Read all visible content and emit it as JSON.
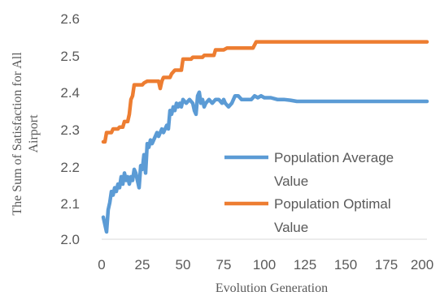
{
  "chart_data": {
    "type": "line",
    "xlabel": "Evolution Generation",
    "ylabel": [
      "The Sum of  Satisfaction for All",
      "Airport"
    ],
    "xlim": [
      0,
      200
    ],
    "ylim": [
      2.0,
      2.6
    ],
    "x_ticks": [
      "0",
      "25",
      "50",
      "75",
      "100",
      "125",
      "150",
      "175",
      "200"
    ],
    "y_ticks": [
      "2.0",
      "2.1",
      "2.2",
      "2.3",
      "2.4",
      "2.5",
      "2.6"
    ],
    "grid": false,
    "legend_position": "right",
    "series": [
      {
        "name": [
          "Population Average",
          "Value"
        ],
        "color": "#5b9bd5",
        "points": [
          [
            1,
            2.06
          ],
          [
            2,
            2.04
          ],
          [
            3,
            2.02
          ],
          [
            4,
            2.08
          ],
          [
            5,
            2.1
          ],
          [
            6,
            2.13
          ],
          [
            7,
            2.12
          ],
          [
            8,
            2.14
          ],
          [
            9,
            2.13
          ],
          [
            10,
            2.15
          ],
          [
            11,
            2.14
          ],
          [
            12,
            2.17
          ],
          [
            13,
            2.15
          ],
          [
            14,
            2.18
          ],
          [
            15,
            2.16
          ],
          [
            16,
            2.17
          ],
          [
            17,
            2.15
          ],
          [
            18,
            2.17
          ],
          [
            19,
            2.16
          ],
          [
            20,
            2.19
          ],
          [
            21,
            2.18
          ],
          [
            22,
            2.16
          ],
          [
            23,
            2.14
          ],
          [
            24,
            2.2
          ],
          [
            25,
            2.19
          ],
          [
            26,
            2.23
          ],
          [
            27,
            2.18
          ],
          [
            28,
            2.26
          ],
          [
            29,
            2.25
          ],
          [
            30,
            2.27
          ],
          [
            31,
            2.26
          ],
          [
            32,
            2.27
          ],
          [
            33,
            2.28
          ],
          [
            34,
            2.29
          ],
          [
            35,
            2.28
          ],
          [
            36,
            2.29
          ],
          [
            37,
            2.3
          ],
          [
            38,
            2.29
          ],
          [
            39,
            2.3
          ],
          [
            40,
            2.31
          ],
          [
            41,
            2.3
          ],
          [
            42,
            2.35
          ],
          [
            43,
            2.34
          ],
          [
            44,
            2.36
          ],
          [
            45,
            2.35
          ],
          [
            46,
            2.37
          ],
          [
            47,
            2.36
          ],
          [
            48,
            2.37
          ],
          [
            49,
            2.36
          ],
          [
            50,
            2.38
          ],
          [
            52,
            2.37
          ],
          [
            54,
            2.38
          ],
          [
            56,
            2.37
          ],
          [
            57,
            2.35
          ],
          [
            58,
            2.34
          ],
          [
            59,
            2.39
          ],
          [
            60,
            2.4
          ],
          [
            61,
            2.37
          ],
          [
            62,
            2.38
          ],
          [
            63,
            2.36
          ],
          [
            64,
            2.37
          ],
          [
            66,
            2.38
          ],
          [
            68,
            2.37
          ],
          [
            70,
            2.38
          ],
          [
            72,
            2.38
          ],
          [
            74,
            2.37
          ],
          [
            75,
            2.38
          ],
          [
            76,
            2.37
          ],
          [
            78,
            2.36
          ],
          [
            80,
            2.37
          ],
          [
            82,
            2.39
          ],
          [
            84,
            2.39
          ],
          [
            86,
            2.38
          ],
          [
            88,
            2.38
          ],
          [
            90,
            2.38
          ],
          [
            92,
            2.38
          ],
          [
            94,
            2.39
          ],
          [
            96,
            2.385
          ],
          [
            98,
            2.39
          ],
          [
            100,
            2.385
          ],
          [
            104,
            2.385
          ],
          [
            108,
            2.38
          ],
          [
            112,
            2.38
          ],
          [
            116,
            2.378
          ],
          [
            120,
            2.375
          ],
          [
            125,
            2.375
          ],
          [
            150,
            2.375
          ],
          [
            175,
            2.375
          ],
          [
            200,
            2.375
          ]
        ]
      },
      {
        "name": [
          "Population Optimal",
          "Value"
        ],
        "color": "#ed7d31",
        "points": [
          [
            1,
            2.265
          ],
          [
            2,
            2.265
          ],
          [
            3,
            2.29
          ],
          [
            6,
            2.29
          ],
          [
            7,
            2.3
          ],
          [
            10,
            2.3
          ],
          [
            11,
            2.305
          ],
          [
            13,
            2.305
          ],
          [
            14,
            2.32
          ],
          [
            16,
            2.32
          ],
          [
            17,
            2.34
          ],
          [
            18,
            2.38
          ],
          [
            19,
            2.39
          ],
          [
            20,
            2.42
          ],
          [
            25,
            2.42
          ],
          [
            26,
            2.425
          ],
          [
            28,
            2.43
          ],
          [
            35,
            2.43
          ],
          [
            36,
            2.41
          ],
          [
            37,
            2.43
          ],
          [
            38,
            2.44
          ],
          [
            42,
            2.44
          ],
          [
            43,
            2.45
          ],
          [
            45,
            2.46
          ],
          [
            49,
            2.46
          ],
          [
            50,
            2.49
          ],
          [
            55,
            2.49
          ],
          [
            56,
            2.495
          ],
          [
            62,
            2.495
          ],
          [
            63,
            2.5
          ],
          [
            69,
            2.5
          ],
          [
            70,
            2.515
          ],
          [
            75,
            2.515
          ],
          [
            77,
            2.52
          ],
          [
            93,
            2.52
          ],
          [
            95,
            2.537
          ],
          [
            200,
            2.537
          ]
        ]
      }
    ]
  }
}
